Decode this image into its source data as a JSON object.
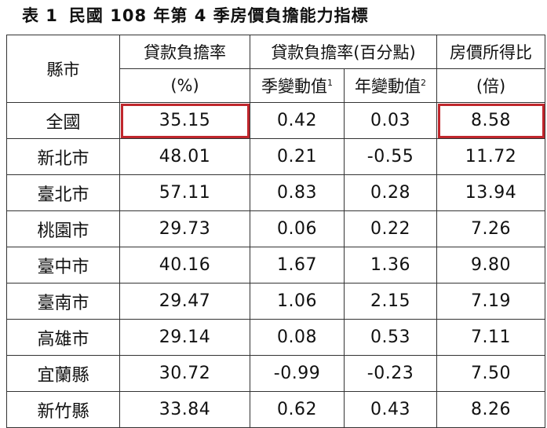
{
  "title": {
    "label": "表 1",
    "text": "民國 108 年第 4 季房價負擔能力指標"
  },
  "header": {
    "city": "縣市",
    "loan_ratio": "貸款負擔率",
    "loan_ratio_unit": "(%)",
    "loan_ratio_change": "貸款負擔率(百分點)",
    "qoq": "季變動值",
    "qoq_note": "1",
    "yoy": "年變動值",
    "yoy_note": "2",
    "price_income": "房價所得比",
    "price_income_unit": "(倍)"
  },
  "rows": [
    {
      "city": "全國",
      "ratio": "35.15",
      "qoq": "0.42",
      "yoy": "0.03",
      "pir": "8.58"
    },
    {
      "city": "新北市",
      "ratio": "48.01",
      "qoq": "0.21",
      "yoy": "-0.55",
      "pir": "11.72"
    },
    {
      "city": "臺北市",
      "ratio": "57.11",
      "qoq": "0.83",
      "yoy": "0.28",
      "pir": "13.94"
    },
    {
      "city": "桃園市",
      "ratio": "29.73",
      "qoq": "0.06",
      "yoy": "0.22",
      "pir": "7.26"
    },
    {
      "city": "臺中市",
      "ratio": "40.16",
      "qoq": "1.67",
      "yoy": "1.36",
      "pir": "9.80"
    },
    {
      "city": "臺南市",
      "ratio": "29.47",
      "qoq": "1.06",
      "yoy": "2.15",
      "pir": "7.19"
    },
    {
      "city": "高雄市",
      "ratio": "29.14",
      "qoq": "0.08",
      "yoy": "0.53",
      "pir": "7.11"
    },
    {
      "city": "宜蘭縣",
      "ratio": "30.72",
      "qoq": "-0.99",
      "yoy": "-0.23",
      "pir": "7.50"
    },
    {
      "city": "新竹縣",
      "ratio": "33.84",
      "qoq": "0.62",
      "yoy": "0.43",
      "pir": "8.26"
    }
  ],
  "highlight_color": "#c0272d"
}
